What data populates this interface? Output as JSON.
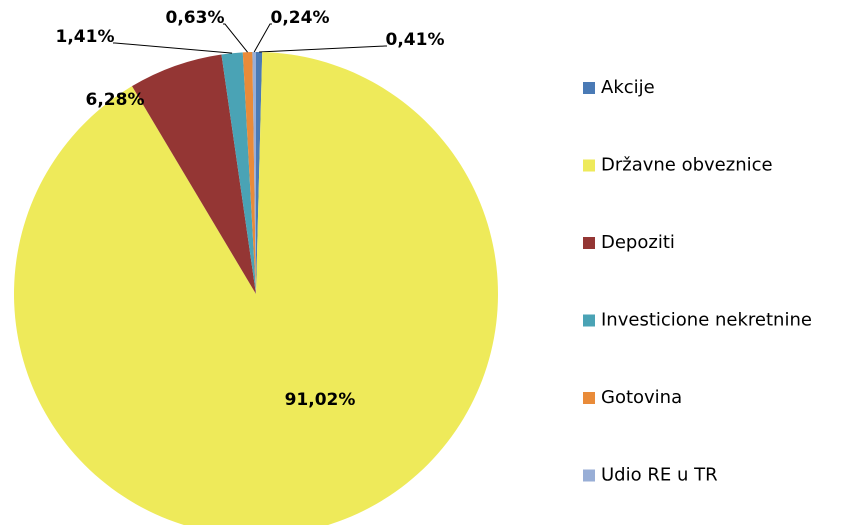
{
  "chart_data": {
    "type": "pie",
    "categories": [
      "Akcije",
      "Državne obveznice",
      "Depoziti",
      "Investicione nekretnine",
      "Gotovina",
      "Udio RE u TR"
    ],
    "values": [
      0.41,
      91.02,
      6.28,
      1.41,
      0.63,
      0.24
    ],
    "value_labels": [
      "0,41%",
      "91,02%",
      "6,28%",
      "1,41%",
      "0,63%",
      "0,24%"
    ],
    "colors": [
      "#4a7ab5",
      "#eeea5a",
      "#943634",
      "#4aa3b5",
      "#e98b39",
      "#98aed6"
    ],
    "legend": "right"
  }
}
